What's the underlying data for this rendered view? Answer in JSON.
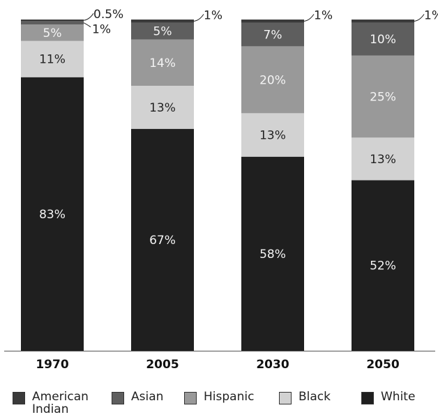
{
  "chart_data": {
    "type": "bar",
    "stacked": true,
    "categories": [
      "1970",
      "2005",
      "2030",
      "2050"
    ],
    "series": [
      {
        "name": "White",
        "color": "#1f1f1f",
        "values": [
          83,
          67,
          58,
          52
        ],
        "labels": [
          "83%",
          "67%",
          "58%",
          "52%"
        ]
      },
      {
        "name": "Black",
        "color": "#d2d2d2",
        "values": [
          11,
          13,
          13,
          13
        ],
        "labels": [
          "11%",
          "13%",
          "13%",
          "13%"
        ]
      },
      {
        "name": "Hispanic",
        "color": "#999999",
        "values": [
          5,
          14,
          20,
          25
        ],
        "labels": [
          "5%",
          "14%",
          "20%",
          "25%"
        ]
      },
      {
        "name": "Asian",
        "color": "#5e5e5e",
        "values": [
          1,
          5,
          7,
          10
        ],
        "labels": [
          "1%",
          "5%",
          "7%",
          "10%"
        ]
      },
      {
        "name": "American\nIndian",
        "color": "#3a3a3a",
        "values": [
          0.5,
          1,
          1,
          1
        ],
        "labels": [
          "0.5%",
          "1%",
          "1%",
          "1%"
        ]
      }
    ],
    "ylim": [
      0,
      100
    ],
    "grid": false,
    "legend_position": "bottom",
    "title": "",
    "xlabel": "",
    "ylabel": ""
  },
  "legend": {
    "items": [
      {
        "label": "American\nIndian",
        "color": "#3a3a3a"
      },
      {
        "label": "Asian",
        "color": "#5e5e5e"
      },
      {
        "label": "Hispanic",
        "color": "#999999"
      },
      {
        "label": "Black",
        "color": "#d2d2d2"
      },
      {
        "label": "White",
        "color": "#1f1f1f"
      }
    ]
  }
}
